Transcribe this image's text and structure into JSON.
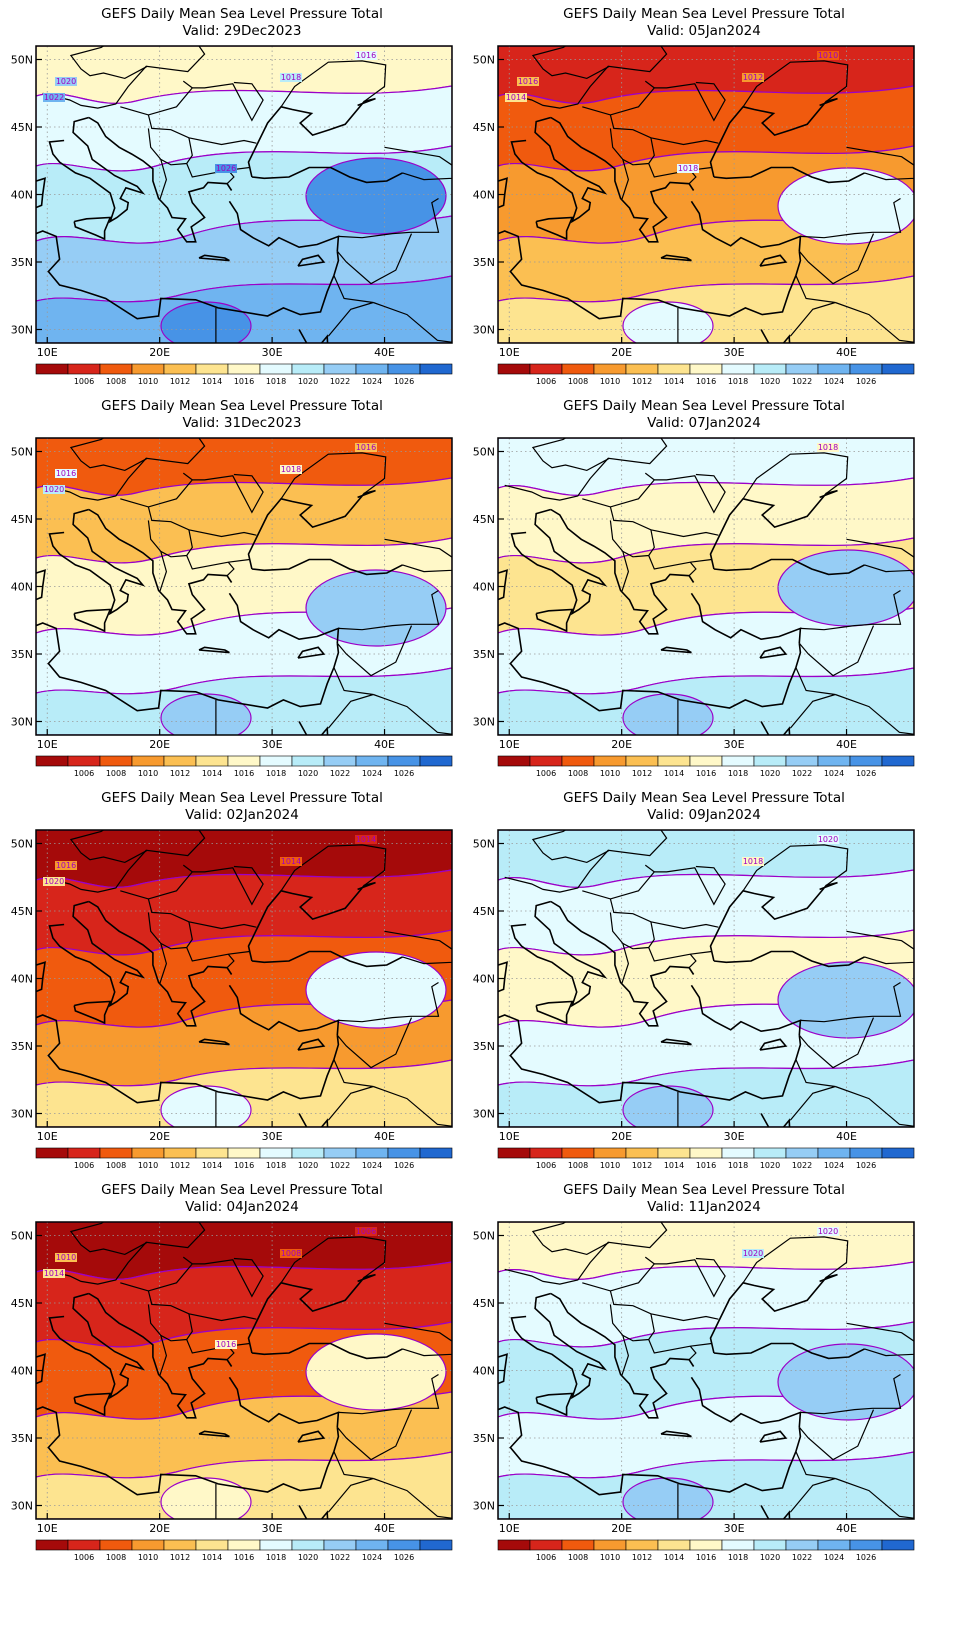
{
  "map_title": "GEFS Daily Mean Sea Level Pressure Total",
  "valid_prefix": "Valid:",
  "lon_ticks": [
    "10E",
    "20E",
    "30E",
    "40E"
  ],
  "lat_ticks": [
    "50N",
    "45N",
    "40N",
    "35N",
    "30N"
  ],
  "colorbar": {
    "labels": [
      "1006",
      "1008",
      "1010",
      "1012",
      "1014",
      "1016",
      "1018",
      "1020",
      "1022",
      "1024",
      "1026"
    ],
    "colors": [
      "#a50a0a",
      "#d7251b",
      "#f05a0e",
      "#f79a2f",
      "#fbbf52",
      "#fde490",
      "#fff8c8",
      "#e4fbff",
      "#b8ecf8",
      "#96cdf5",
      "#6fb4f0",
      "#4793e6",
      "#2068d0"
    ]
  },
  "panels": [
    {
      "date": "29Dec2023",
      "labels": [
        "1016",
        "1018",
        "1020",
        "1022",
        "1026"
      ],
      "colors": [
        "#fff8c8",
        "#e4fbff",
        "#b8ecf8",
        "#96cdf5",
        "#6fb4f0",
        "#4793e6",
        "#2068d0"
      ]
    },
    {
      "date": "05Jan2024",
      "labels": [
        "1010",
        "1012",
        "1016",
        "1014",
        "1018"
      ],
      "colors": [
        "#d7251b",
        "#f05a0e",
        "#f79a2f",
        "#fbbf52",
        "#fde490",
        "#e4fbff",
        "#b8ecf8"
      ]
    },
    {
      "date": "31Dec2023",
      "labels": [
        "1016",
        "1018",
        "1016",
        "1020"
      ],
      "colors": [
        "#f05a0e",
        "#fbbf52",
        "#fff8c8",
        "#e4fbff",
        "#b8ecf8",
        "#96cdf5",
        "#6fb4f0"
      ]
    },
    {
      "date": "07Jan2024",
      "labels": [
        "1018"
      ],
      "colors": [
        "#e4fbff",
        "#fff8c8",
        "#fde490",
        "#e4fbff",
        "#b8ecf8",
        "#96cdf5",
        "#6fb4f0"
      ]
    },
    {
      "date": "02Jan2024",
      "labels": [
        "1014",
        "1014",
        "1016",
        "1020"
      ],
      "colors": [
        "#a50a0a",
        "#d7251b",
        "#f05a0e",
        "#f79a2f",
        "#fde490",
        "#e4fbff",
        "#b8ecf8"
      ]
    },
    {
      "date": "09Jan2024",
      "labels": [
        "1020",
        "1018"
      ],
      "colors": [
        "#b8ecf8",
        "#e4fbff",
        "#fff8c8",
        "#e4fbff",
        "#b8ecf8",
        "#96cdf5",
        "#b8ecf8"
      ]
    },
    {
      "date": "04Jan2024",
      "labels": [
        "1006",
        "1008",
        "1010",
        "1014",
        "1016"
      ],
      "colors": [
        "#a50a0a",
        "#d7251b",
        "#f05a0e",
        "#fbbf52",
        "#fde490",
        "#fff8c8",
        "#b8ecf8"
      ]
    },
    {
      "date": "11Jan2024",
      "labels": [
        "1020",
        "1020"
      ],
      "colors": [
        "#fff8c8",
        "#e4fbff",
        "#b8ecf8",
        "#e4fbff",
        "#b8ecf8",
        "#96cdf5",
        "#b8ecf8"
      ]
    }
  ]
}
